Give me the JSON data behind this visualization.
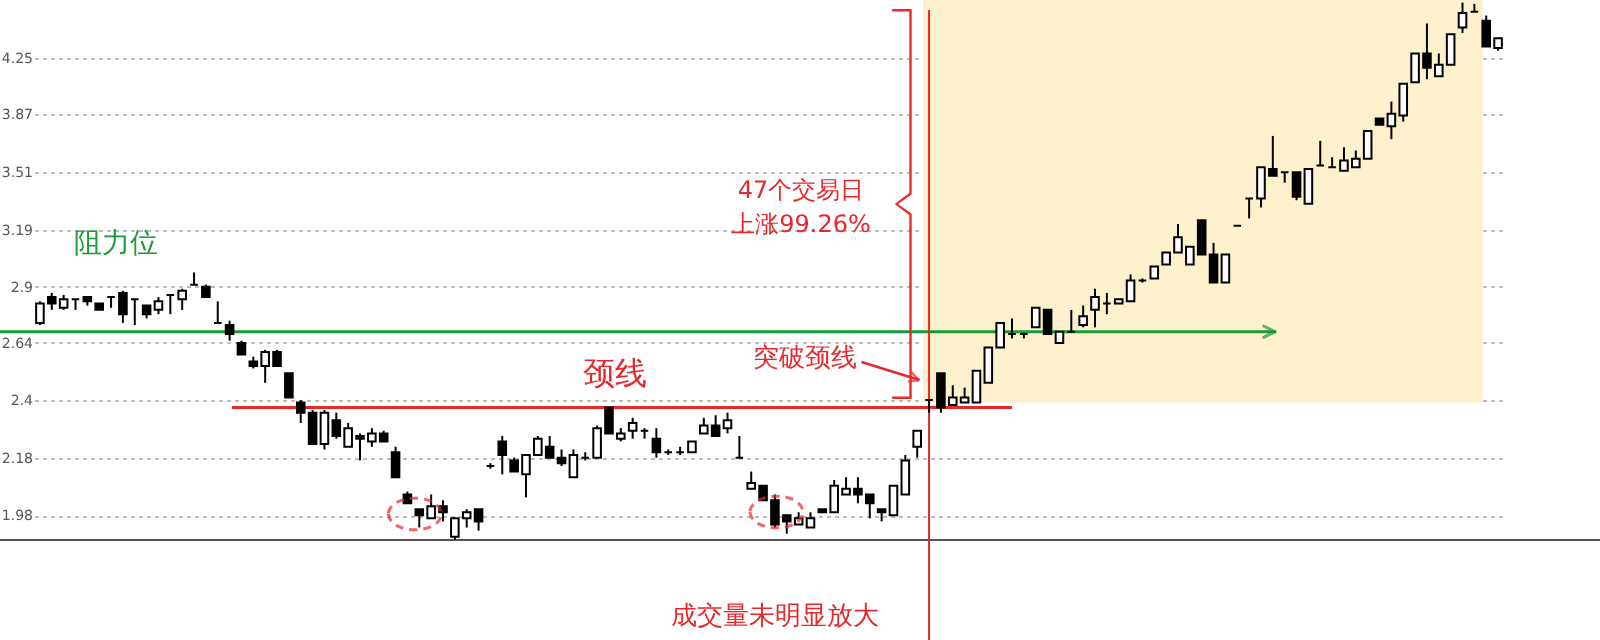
{
  "chart_data": {
    "type": "candlestick",
    "categories": [
      null,
      null,
      null,
      null,
      null,
      null,
      null,
      null,
      null,
      null,
      null,
      null,
      null,
      null,
      null,
      null,
      null,
      null,
      null,
      null,
      null,
      null,
      null,
      null,
      null,
      null,
      null,
      null,
      null,
      null,
      null,
      null,
      null,
      null,
      null,
      null,
      null,
      null,
      null,
      null,
      null,
      null,
      null,
      null,
      null,
      null,
      null,
      null,
      null,
      null,
      null,
      null,
      null,
      null,
      null,
      null,
      null,
      null,
      null,
      null,
      null,
      null,
      null,
      null,
      null,
      null,
      null,
      null,
      null,
      null,
      null,
      null,
      null,
      null,
      null,
      null,
      null,
      null,
      null,
      null,
      null,
      null,
      null,
      null,
      null,
      null,
      null,
      null,
      null,
      null,
      null,
      null,
      null,
      null,
      null,
      null,
      null,
      null,
      null,
      null,
      null,
      null,
      null,
      null,
      null,
      null,
      null,
      null,
      null,
      null,
      null,
      null,
      null,
      null,
      null,
      null,
      null,
      null,
      null,
      null,
      null,
      null,
      null,
      null
    ],
    "ohlc": [
      [
        2.73,
        2.83,
        2.72,
        2.82
      ],
      [
        2.85,
        2.87,
        2.79,
        2.82
      ],
      [
        2.8,
        2.86,
        2.79,
        2.84
      ],
      [
        2.84,
        2.84,
        2.79,
        2.84
      ],
      [
        2.85,
        2.85,
        2.81,
        2.83
      ],
      [
        2.82,
        2.82,
        2.79,
        2.79
      ],
      [
        2.85,
        2.85,
        2.8,
        2.85
      ],
      [
        2.87,
        2.88,
        2.73,
        2.77
      ],
      [
        2.84,
        2.84,
        2.72,
        2.84
      ],
      [
        2.81,
        2.81,
        2.75,
        2.77
      ],
      [
        2.79,
        2.85,
        2.77,
        2.83
      ],
      [
        2.86,
        2.86,
        2.77,
        2.86
      ],
      [
        2.84,
        2.89,
        2.79,
        2.88
      ],
      [
        2.91,
        2.97,
        2.91,
        2.91
      ],
      [
        2.9,
        2.91,
        2.85,
        2.85
      ],
      [
        2.73,
        2.83,
        2.73,
        2.73
      ],
      [
        2.72,
        2.74,
        2.65,
        2.68
      ],
      [
        2.64,
        2.65,
        2.59,
        2.59
      ],
      [
        2.56,
        2.58,
        2.53,
        2.54
      ],
      [
        2.54,
        2.61,
        2.47,
        2.6
      ],
      [
        2.6,
        2.61,
        2.54,
        2.54
      ],
      [
        2.51,
        2.51,
        2.41,
        2.41
      ],
      [
        2.39,
        2.4,
        2.31,
        2.35
      ],
      [
        2.35,
        2.36,
        2.23,
        2.23
      ],
      [
        2.23,
        2.36,
        2.21,
        2.35
      ],
      [
        2.32,
        2.35,
        2.25,
        2.26
      ],
      [
        2.22,
        2.31,
        2.22,
        2.29
      ],
      [
        2.26,
        2.27,
        2.17,
        2.25
      ],
      [
        2.24,
        2.29,
        2.22,
        2.27
      ],
      [
        2.27,
        2.28,
        2.24,
        2.24
      ],
      [
        2.2,
        2.22,
        2.11,
        2.11
      ],
      [
        2.05,
        2.06,
        2.02,
        2.02
      ],
      [
        2.0,
        2.0,
        1.94,
        1.98
      ],
      [
        1.97,
        2.05,
        1.97,
        2.01
      ],
      [
        2.01,
        2.03,
        1.96,
        1.99
      ],
      [
        1.91,
        1.97,
        1.9,
        1.97
      ],
      [
        1.97,
        2.0,
        1.94,
        1.99
      ],
      [
        2.0,
        2.0,
        1.93,
        1.96
      ],
      [
        2.15,
        2.16,
        2.14,
        2.15
      ],
      [
        2.24,
        2.26,
        2.12,
        2.19
      ],
      [
        2.17,
        2.18,
        2.13,
        2.13
      ],
      [
        2.12,
        2.19,
        2.04,
        2.19
      ],
      [
        2.19,
        2.26,
        2.19,
        2.25
      ],
      [
        2.22,
        2.26,
        2.18,
        2.18
      ],
      [
        2.18,
        2.21,
        2.15,
        2.16
      ],
      [
        2.11,
        2.21,
        2.11,
        2.19
      ],
      [
        2.18,
        2.2,
        2.17,
        2.18
      ],
      [
        2.18,
        2.3,
        2.18,
        2.29
      ],
      [
        2.37,
        2.37,
        2.27,
        2.27
      ],
      [
        2.25,
        2.29,
        2.24,
        2.27
      ],
      [
        2.28,
        2.33,
        2.25,
        2.31
      ],
      [
        2.28,
        2.29,
        2.25,
        2.28
      ],
      [
        2.25,
        2.29,
        2.18,
        2.2
      ],
      [
        2.2,
        2.21,
        2.19,
        2.2
      ],
      [
        2.2,
        2.22,
        2.19,
        2.2
      ],
      [
        2.2,
        2.24,
        2.2,
        2.24
      ],
      [
        2.27,
        2.33,
        2.27,
        2.3
      ],
      [
        2.3,
        2.34,
        2.26,
        2.26
      ],
      [
        2.29,
        2.35,
        2.27,
        2.32
      ],
      [
        2.18,
        2.26,
        2.18,
        2.18
      ],
      [
        2.07,
        2.13,
        2.07,
        2.09
      ],
      [
        2.08,
        2.08,
        2.03,
        2.03
      ],
      [
        2.03,
        2.05,
        1.94,
        1.95
      ],
      [
        1.98,
        1.98,
        1.92,
        1.96
      ],
      [
        1.95,
        1.99,
        1.95,
        1.97
      ],
      [
        1.94,
        1.99,
        1.94,
        1.97
      ],
      [
        2.0,
        2.0,
        1.99,
        1.99
      ],
      [
        1.99,
        2.1,
        1.99,
        2.08
      ],
      [
        2.05,
        2.11,
        2.05,
        2.07
      ],
      [
        2.07,
        2.11,
        2.02,
        2.05
      ],
      [
        2.05,
        2.05,
        1.97,
        2.02
      ],
      [
        2.0,
        2.0,
        1.96,
        1.99
      ],
      [
        1.98,
        2.08,
        1.98,
        2.08
      ],
      [
        2.05,
        2.19,
        2.05,
        2.17
      ],
      [
        2.22,
        2.28,
        2.18,
        2.28
      ],
      [
        2.4,
        2.4,
        2.35,
        2.4
      ],
      [
        2.51,
        2.51,
        2.35,
        2.37
      ],
      [
        2.38,
        2.46,
        2.38,
        2.41
      ],
      [
        2.39,
        2.45,
        2.39,
        2.41
      ],
      [
        2.39,
        2.52,
        2.39,
        2.52
      ],
      [
        2.47,
        2.62,
        2.47,
        2.62
      ],
      [
        2.62,
        2.73,
        2.62,
        2.73
      ],
      [
        2.68,
        2.75,
        2.66,
        2.68
      ],
      [
        2.68,
        2.68,
        2.66,
        2.68
      ],
      [
        2.71,
        2.8,
        2.71,
        2.8
      ],
      [
        2.79,
        2.79,
        2.68,
        2.68
      ],
      [
        2.64,
        2.69,
        2.64,
        2.69
      ],
      [
        2.69,
        2.79,
        2.69,
        2.69
      ],
      [
        2.72,
        2.81,
        2.71,
        2.76
      ],
      [
        2.79,
        2.89,
        2.71,
        2.85
      ],
      [
        2.82,
        2.87,
        2.77,
        2.82
      ],
      [
        2.82,
        2.84,
        2.82,
        2.84
      ],
      [
        2.83,
        2.96,
        2.83,
        2.93
      ],
      [
        2.93,
        2.94,
        2.92,
        2.93
      ],
      [
        2.94,
        3.0,
        2.94,
        3.0
      ],
      [
        3.01,
        3.07,
        3.01,
        3.07
      ],
      [
        3.07,
        3.22,
        3.07,
        3.15
      ],
      [
        3.01,
        3.1,
        3.01,
        3.1
      ],
      [
        3.24,
        3.24,
        3.06,
        3.06
      ],
      [
        3.06,
        3.12,
        2.92,
        2.92
      ],
      [
        2.92,
        3.06,
        2.92,
        3.06
      ],
      [
        3.21,
        3.21,
        3.21,
        3.21
      ],
      [
        3.36,
        3.36,
        3.25,
        3.36
      ],
      [
        3.36,
        3.54,
        3.31,
        3.54
      ],
      [
        3.53,
        3.73,
        3.49,
        3.49
      ],
      [
        3.51,
        3.51,
        3.45,
        3.51
      ],
      [
        3.51,
        3.51,
        3.35,
        3.37
      ],
      [
        3.33,
        3.53,
        3.33,
        3.53
      ],
      [
        3.55,
        3.7,
        3.55,
        3.55
      ],
      [
        3.54,
        3.6,
        3.54,
        3.54
      ],
      [
        3.52,
        3.66,
        3.52,
        3.58
      ],
      [
        3.54,
        3.64,
        3.54,
        3.59
      ],
      [
        3.59,
        3.76,
        3.59,
        3.76
      ],
      [
        3.84,
        3.84,
        3.8,
        3.8
      ],
      [
        3.79,
        3.95,
        3.71,
        3.87
      ],
      [
        3.86,
        4.07,
        3.82,
        4.07
      ],
      [
        4.08,
        4.28,
        4.08,
        4.28
      ],
      [
        4.28,
        4.5,
        4.1,
        4.18
      ],
      [
        4.12,
        4.28,
        4.12,
        4.2
      ],
      [
        4.2,
        4.42,
        4.2,
        4.42
      ],
      [
        4.47,
        4.66,
        4.43,
        4.58
      ],
      [
        4.59,
        4.65,
        4.59,
        4.59
      ],
      [
        4.52,
        4.56,
        4.33,
        4.33
      ],
      [
        4.32,
        4.39,
        4.3,
        4.39
      ]
    ],
    "log": true,
    "ylim": [
      1.9,
      4.68
    ],
    "yticks": [
      1.98,
      2.18,
      2.4,
      2.64,
      2.9,
      3.19,
      3.51,
      3.87,
      4.25
    ],
    "grid": "y",
    "tick_labels": "y",
    "ref_lines": [
      {
        "axis": "y",
        "value": 2.69,
        "label": "阻力位",
        "color": "#1a9b3a"
      },
      {
        "axis": "y",
        "value": 2.37,
        "label": "颈线",
        "color": "#e8272a"
      }
    ],
    "bands": [
      {
        "axis": "y",
        "from": 2.39,
        "to": 4.68,
        "color": "#fdf0cc"
      }
    ],
    "annotations": [
      "47个交易日",
      "上涨99.26%",
      "突破颈线",
      "成交量未明显放大"
    ]
  }
}
